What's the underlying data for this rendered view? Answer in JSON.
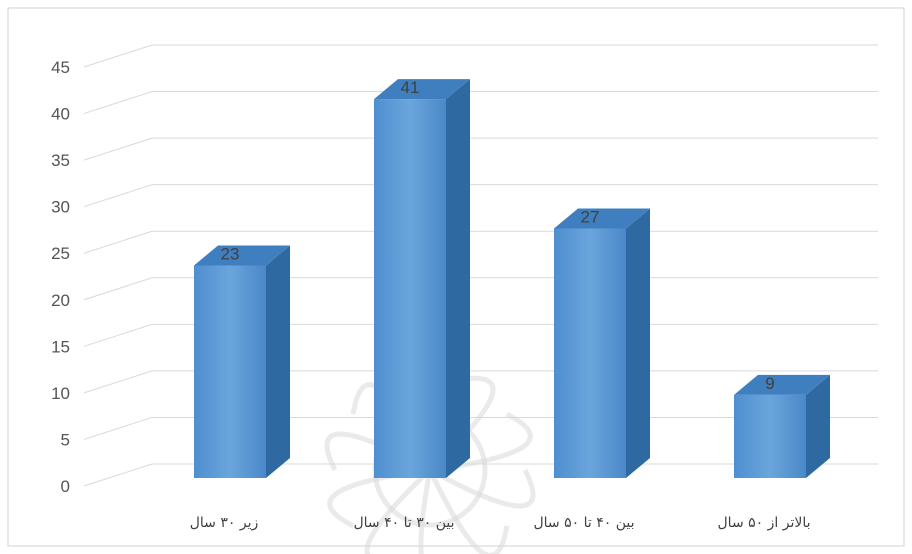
{
  "chart_data": {
    "type": "bar",
    "categories": [
      "زیر ۳۰ سال",
      "بین ۳۰ تا ۴۰ سال",
      "بین ۴۰ تا ۵۰ سال",
      "بالاتر از ۵۰ سال"
    ],
    "values": [
      23,
      41,
      27,
      9
    ],
    "data_labels": [
      "23",
      "41",
      "27",
      "9"
    ],
    "yticks": [
      "0",
      "5",
      "10",
      "15",
      "20",
      "25",
      "30",
      "35",
      "40",
      "45"
    ],
    "ylim": [
      0,
      45
    ],
    "grid": true,
    "legend": "none",
    "colors": {
      "bar_front": "#5b9bd5",
      "bar_side": "#2e6aa1",
      "bar_top": "#3f7fbf",
      "grid": "#d9d9d9",
      "watermark": "#d8d8d8"
    }
  }
}
